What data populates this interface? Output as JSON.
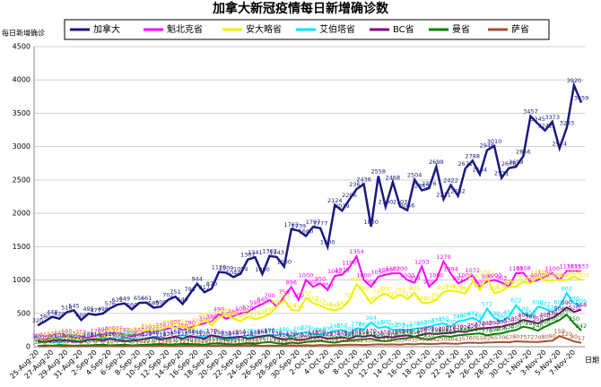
{
  "chart_data": {
    "type": "line",
    "title": "加拿大新冠疫情每日新增确诊数",
    "y_label": "每日新增确诊",
    "x_label": "日期",
    "categories": [
      "25-Aug-20",
      null,
      "27-Aug-20",
      null,
      "29-Aug-20",
      null,
      "31-Aug-20",
      null,
      "2-Sep-20",
      null,
      "4-Sep-20",
      null,
      "6-Sep-20",
      null,
      "8-Sep-20",
      null,
      "10-Sep-20",
      null,
      "12-Sep-20",
      null,
      "14-Sep-20",
      null,
      "16-Sep-20",
      null,
      "18-Sep-20",
      null,
      "20-Sep-20",
      null,
      "22-Sep-20",
      null,
      "24-Sep-20",
      null,
      "26-Sep-20",
      null,
      "28-Sep-20",
      null,
      "30-Sep-20",
      null,
      "2-Oct-20",
      null,
      "4-Oct-20",
      null,
      "6-Oct-20",
      null,
      "8-Oct-20",
      null,
      "10-Oct-20",
      null,
      "12-Oct-20",
      null,
      "14-Oct-20",
      null,
      "16-Oct-20",
      null,
      "18-Oct-20",
      null,
      "20-Oct-20",
      null,
      "22-Oct-20",
      null,
      "24-Oct-20",
      null,
      "26-Oct-20",
      null,
      "28-Oct-20",
      null,
      "30-Oct-20",
      null,
      "1-Nov-20",
      null,
      "3-Nov-20",
      null,
      "5-Nov-20",
      null,
      "7-Nov-20",
      null
    ],
    "ylim": [
      0,
      4500
    ],
    "yticks": [
      0,
      500,
      1000,
      1500,
      2000,
      2500,
      3000,
      3500,
      4000,
      4500
    ],
    "grid": true,
    "series": [
      {
        "name": "加拿大",
        "color": "#1a1a80",
        "values": [
          320,
          380,
          448,
          420,
          516,
          545,
          400,
          495,
          477,
          498,
          576,
          631,
          649,
          560,
          656,
          661,
          585,
          600,
          702,
          751,
          640,
          793,
          944,
          817,
          870,
          1120,
          1109,
          1044,
          1094,
          1307,
          1341,
          1090,
          1362,
          1343,
          1200,
          1763,
          1739,
          1660,
          1797,
          1777,
          1500,
          2124,
          2039,
          2206,
          2363,
          2436,
          1800,
          2558,
          2100,
          2468,
          2103,
          2046,
          2504,
          2345,
          2376,
          2698,
          2211,
          2422,
          2262,
          2671,
          2788,
          2584,
          2946,
          3010,
          2531,
          2676,
          2699,
          2856,
          3457,
          3345,
          3242,
          3373,
          2974,
          3283,
          3920,
          3659
        ]
      },
      {
        "name": "魁北克省",
        "color": "#ff00ff",
        "values": [
          100,
          110,
          120,
          140,
          160,
          130,
          150,
          130,
          170,
          190,
          200,
          210,
          180,
          160,
          180,
          230,
          220,
          250,
          270,
          300,
          250,
          290,
          320,
          350,
          380,
          490,
          420,
          460,
          500,
          520,
          590,
          640,
          700,
          600,
          750,
          896,
          700,
          1000,
          900,
          950,
          850,
          1062,
          1079,
          1190,
          1354,
          1000,
          900,
          1050,
          1080,
          1102,
          1100,
          1000,
          959,
          1203,
          900,
          1000,
          1279,
          1094,
          951,
          1000,
          1072,
          900,
          980,
          1000,
          963,
          900,
          1100,
          1108,
          970,
          1000,
          1050,
          1100,
          1000,
          1138,
          1135,
          1133
        ]
      },
      {
        "name": "安大略省",
        "color": "#f0f000",
        "values": [
          90,
          100,
          110,
          130,
          150,
          120,
          130,
          110,
          130,
          150,
          180,
          200,
          170,
          190,
          200,
          250,
          230,
          260,
          300,
          280,
          310,
          250,
          320,
          400,
          320,
          440,
          480,
          420,
          380,
          450,
          410,
          440,
          490,
          600,
          700,
          554,
          538,
          732,
          653,
          615,
          566,
          548,
          583,
          700,
          939,
          809,
          649,
          750,
          800,
          721,
          783,
          712,
          805,
          660,
          655,
          704,
          821,
          841,
          826,
          800,
          978,
          851,
          1042,
          800,
          834,
          896,
          900,
          977,
          948,
          1050,
          987,
          998,
          1003,
          1000,
          1050,
          1003
        ]
      },
      {
        "name": "艾伯塔省",
        "color": "#00e5ff",
        "values": [
          60,
          70,
          80,
          60,
          100,
          90,
          80,
          110,
          100,
          120,
          130,
          90,
          140,
          120,
          100,
          130,
          150,
          140,
          120,
          160,
          170,
          140,
          160,
          150,
          170,
          130,
          100,
          110,
          150,
          170,
          160,
          140,
          180,
          170,
          190,
          150,
          200,
          220,
          190,
          180,
          200,
          240,
          250,
          200,
          276,
          260,
          364,
          280,
          300,
          250,
          259,
          240,
          270,
          280,
          300,
          330,
          350,
          300,
          380,
          400,
          432,
          380,
          572,
          430,
          380,
          450,
          622,
          500,
          450,
          600,
          572,
          520,
          600,
          802,
          650,
          609
        ]
      },
      {
        "name": "BC省",
        "color": "#800080",
        "values": [
          80,
          70,
          90,
          100,
          90,
          80,
          70,
          100,
          110,
          90,
          120,
          100,
          80,
          90,
          100,
          120,
          140,
          110,
          130,
          150,
          120,
          160,
          140,
          120,
          170,
          150,
          130,
          140,
          150,
          120,
          140,
          160,
          170,
          130,
          110,
          120,
          100,
          110,
          140,
          150,
          120,
          130,
          140,
          120,
          160,
          150,
          170,
          130,
          150,
          140,
          160,
          170,
          150,
          180,
          200,
          190,
          200,
          210,
          230,
          220,
          250,
          270,
          280,
          290,
          300,
          330,
          350,
          400,
          380,
          350,
          400,
          430,
          500,
          590,
          520,
          558
        ]
      },
      {
        "name": "曼省",
        "color": "#008000",
        "values": [
          10,
          20,
          15,
          25,
          20,
          15,
          20,
          20,
          25,
          30,
          20,
          25,
          30,
          20,
          25,
          30,
          35,
          40,
          30,
          35,
          40,
          40,
          35,
          30,
          45,
          50,
          40,
          35,
          40,
          50,
          45,
          60,
          70,
          50,
          40,
          60,
          50,
          70,
          80,
          90,
          70,
          60,
          80,
          90,
          100,
          110,
          120,
          90,
          80,
          100,
          120,
          130,
          150,
          120,
          110,
          140,
          160,
          150,
          170,
          180,
          190,
          200,
          170,
          190,
          200,
          230,
          250,
          300,
          280,
          240,
          300,
          350,
          400,
          480,
          350,
          242
        ]
      },
      {
        "name": "萨省",
        "color": "#a0522d",
        "values": [
          5,
          3,
          8,
          5,
          4,
          6,
          5,
          5,
          8,
          6,
          10,
          7,
          5,
          8,
          10,
          12,
          8,
          15,
          10,
          9,
          12,
          14,
          10,
          15,
          12,
          18,
          16,
          14,
          15,
          18,
          20,
          12,
          16,
          14,
          18,
          20,
          16,
          22,
          18,
          25,
          20,
          24,
          26,
          30,
          28,
          25,
          30,
          35,
          32,
          36,
          30,
          40,
          35,
          45,
          38,
          42,
          50,
          46,
          43,
          57,
          60,
          55,
          62,
          65,
          70,
          67,
          80,
          75,
          72,
          70,
          80,
          90,
          159,
          120,
          80,
          57
        ]
      }
    ]
  }
}
